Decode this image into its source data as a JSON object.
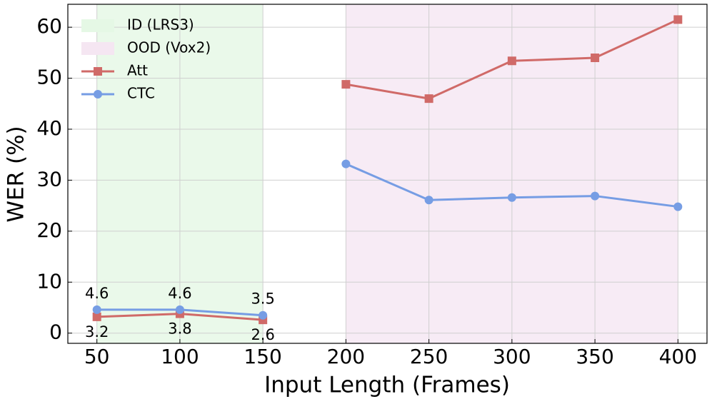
{
  "chart_data": {
    "type": "line",
    "xlabel": "Input Length (Frames)",
    "ylabel": "WER (%)",
    "x": [
      50,
      100,
      150,
      null,
      200,
      250,
      300,
      350,
      400
    ],
    "series": [
      {
        "name": "Att",
        "color": "#d06a68",
        "marker": "square",
        "values": [
          3.2,
          3.8,
          2.6,
          null,
          48.8,
          46.0,
          53.4,
          54.0,
          61.5
        ],
        "value_labels": [
          "3.2",
          "3.8",
          "2.6",
          null,
          null,
          null,
          null,
          null,
          null
        ],
        "label_position": "below"
      },
      {
        "name": "CTC",
        "color": "#769de4",
        "marker": "circle",
        "values": [
          4.6,
          4.6,
          3.5,
          null,
          33.2,
          26.1,
          26.6,
          26.9,
          24.8
        ],
        "value_labels": [
          "4.6",
          "4.6",
          "3.5",
          null,
          null,
          null,
          null,
          null,
          null
        ],
        "label_position": "above"
      }
    ],
    "spans": [
      {
        "name": "ID (LRS3)",
        "color": "#e5f8e5",
        "range": [
          50,
          150
        ]
      },
      {
        "name": "OOD (Vox2)",
        "color": "#f5e6f2",
        "range": [
          200,
          400
        ]
      }
    ],
    "xlim": [
      32.5,
      417.5
    ],
    "ylim": [
      -2,
      64.5
    ],
    "xticks": [
      50,
      100,
      150,
      200,
      250,
      300,
      350,
      400
    ],
    "yticks": [
      0,
      10,
      20,
      30,
      40,
      50,
      60
    ],
    "grid": true,
    "legend": "upper-left"
  }
}
